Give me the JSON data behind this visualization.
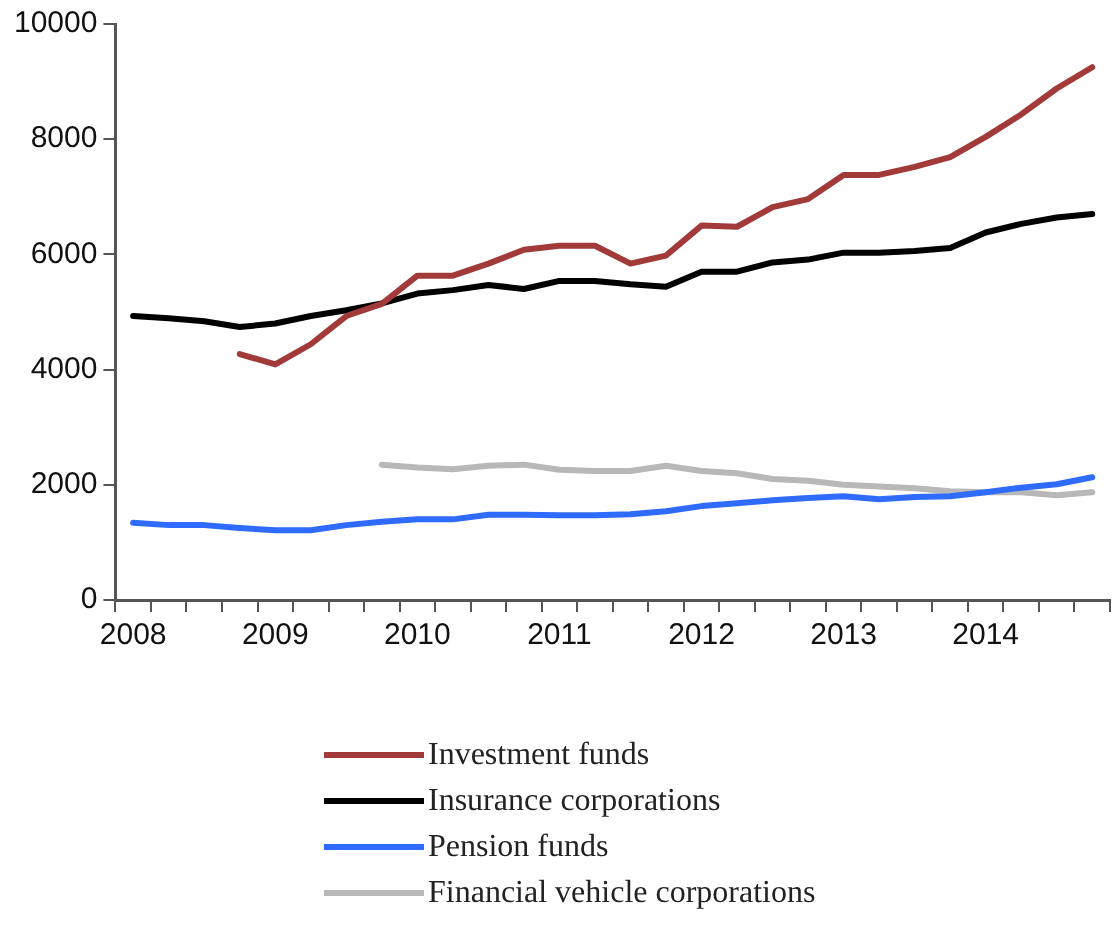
{
  "chart_data": {
    "type": "line",
    "categories": [
      "2008",
      null,
      null,
      null,
      "2009",
      null,
      null,
      null,
      "2010",
      null,
      null,
      null,
      "2011",
      null,
      null,
      null,
      "2012",
      null,
      null,
      null,
      "2013",
      null,
      null,
      null,
      "2014",
      null,
      null,
      null
    ],
    "series": [
      {
        "name": "Investment funds",
        "color": "#a33a3a",
        "values": [
          null,
          null,
          null,
          4270,
          4090,
          4440,
          4930,
          5140,
          5630,
          5630,
          5840,
          6080,
          6150,
          6150,
          5840,
          5980,
          6500,
          6480,
          6820,
          6960,
          7380,
          7380,
          7520,
          7690,
          8040,
          8430,
          8880,
          9250
        ]
      },
      {
        "name": "Insurance corporations",
        "color": "#000000",
        "values": [
          4930,
          4890,
          4840,
          4740,
          4800,
          4930,
          5030,
          5150,
          5320,
          5380,
          5470,
          5400,
          5540,
          5540,
          5480,
          5440,
          5700,
          5700,
          5860,
          5910,
          6030,
          6030,
          6060,
          6110,
          6380,
          6530,
          6640,
          6700
        ]
      },
      {
        "name": "Pension funds",
        "color": "#2f6bff",
        "values": [
          1340,
          1300,
          1300,
          1250,
          1210,
          1210,
          1300,
          1360,
          1400,
          1400,
          1480,
          1480,
          1470,
          1470,
          1490,
          1540,
          1630,
          1680,
          1730,
          1770,
          1800,
          1750,
          1790,
          1800,
          1870,
          1950,
          2010,
          2130
        ]
      },
      {
        "name": "Financial vehicle corporations",
        "color": "#b8b8b8",
        "values": [
          null,
          null,
          null,
          null,
          null,
          null,
          null,
          2350,
          2300,
          2270,
          2330,
          2350,
          2260,
          2240,
          2240,
          2330,
          2240,
          2200,
          2100,
          2070,
          2000,
          1970,
          1940,
          1890,
          1870,
          1870,
          1820,
          1870
        ]
      }
    ],
    "ylim": [
      0,
      10000
    ],
    "yticks": [
      0,
      2000,
      4000,
      6000,
      8000,
      10000
    ],
    "grid": false,
    "legend": "bottom",
    "marker": "none",
    "line_style": "solid"
  }
}
